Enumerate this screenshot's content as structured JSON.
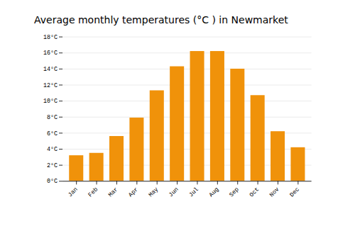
{
  "chart_data": {
    "type": "bar",
    "title": "Average monthly temperatures (°C ) in Newmarket",
    "categories": [
      "Jan",
      "Feb",
      "Mar",
      "Apr",
      "May",
      "Jun",
      "Jul",
      "Aug",
      "Sep",
      "Oct",
      "Nov",
      "Dec"
    ],
    "values": [
      3.2,
      3.5,
      5.6,
      7.9,
      11.3,
      14.3,
      16.2,
      16.2,
      14.0,
      10.7,
      6.2,
      4.2
    ],
    "color": "#F0920A",
    "ylim": [
      0,
      18
    ],
    "yticks": [
      {
        "value": 0,
        "label": "0°C"
      },
      {
        "value": 2,
        "label": "2°C"
      },
      {
        "value": 4,
        "label": "4°C"
      },
      {
        "value": 6,
        "label": "6°C"
      },
      {
        "value": 8,
        "label": "8°C"
      },
      {
        "value": 10,
        "label": "10°C"
      },
      {
        "value": 12,
        "label": "12°C"
      },
      {
        "value": 14,
        "label": "14°C"
      },
      {
        "value": 16,
        "label": "16°C"
      },
      {
        "value": 18,
        "label": "18°C"
      }
    ],
    "grid": true
  }
}
